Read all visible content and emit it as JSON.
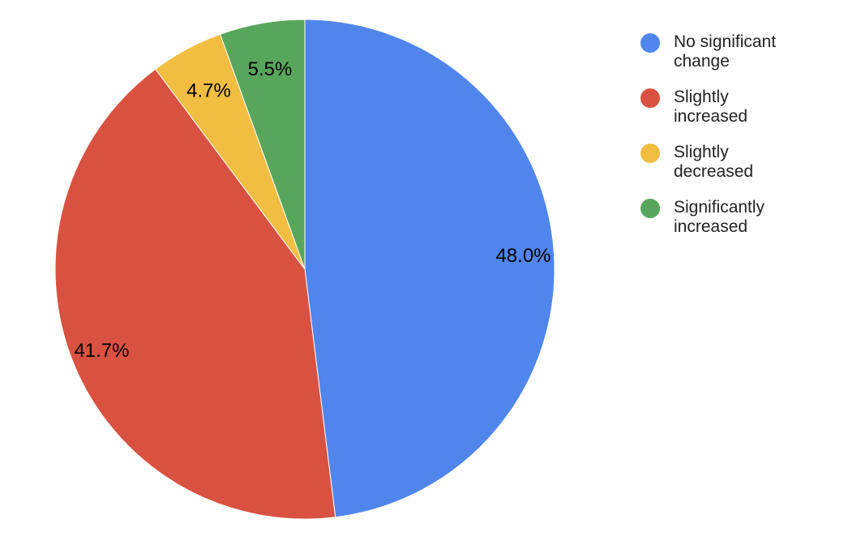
{
  "chart_data": {
    "type": "pie",
    "title": "",
    "legend_position": "right",
    "slices": [
      {
        "label": "No significant change",
        "value": 48.0,
        "display": "48.0%",
        "color": "#5086EC"
      },
      {
        "label": "Slightly increased",
        "value": 41.7,
        "display": "41.7%",
        "color": "#D95140"
      },
      {
        "label": "Slightly decreased",
        "value": 4.7,
        "display": "4.7%",
        "color": "#F1BE42"
      },
      {
        "label": "Significantly increased",
        "value": 5.5,
        "display": "5.5%",
        "color": "#58A65B"
      }
    ]
  }
}
